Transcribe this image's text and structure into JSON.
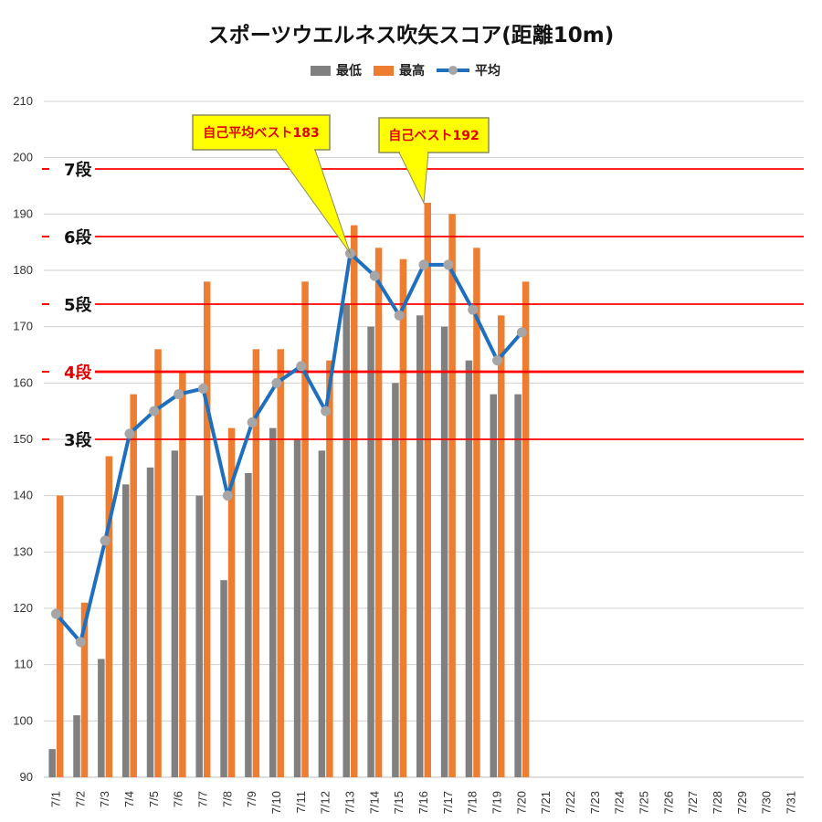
{
  "chart_data": {
    "type": "bar",
    "title": "スポーツウエルネス吹矢スコア(距離10m)",
    "categories": [
      "7/1",
      "7/2",
      "7/3",
      "7/4",
      "7/5",
      "7/6",
      "7/7",
      "7/8",
      "7/9",
      "7/10",
      "7/11",
      "7/12",
      "7/13",
      "7/14",
      "7/15",
      "7/16",
      "7/17",
      "7/18",
      "7/19",
      "7/20",
      "7/21",
      "7/22",
      "7/23",
      "7/24",
      "7/25",
      "7/26",
      "7/27",
      "7/28",
      "7/29",
      "7/30",
      "7/31"
    ],
    "series": [
      {
        "name": "最低",
        "kind": "bar",
        "color": "#808080",
        "values": [
          95,
          101,
          111,
          142,
          145,
          148,
          140,
          125,
          144,
          152,
          150,
          148,
          174,
          170,
          160,
          172,
          170,
          164,
          158,
          158,
          null,
          null,
          null,
          null,
          null,
          null,
          null,
          null,
          null,
          null,
          null
        ]
      },
      {
        "name": "最高",
        "kind": "bar",
        "color": "#ed7d31",
        "values": [
          140,
          121,
          147,
          158,
          166,
          162,
          178,
          152,
          166,
          166,
          178,
          164,
          188,
          184,
          182,
          192,
          190,
          184,
          172,
          178,
          null,
          null,
          null,
          null,
          null,
          null,
          null,
          null,
          null,
          null,
          null
        ]
      },
      {
        "name": "平均",
        "kind": "line",
        "color": "#1f6fbf",
        "marker_color": "#a6a6a6",
        "values": [
          119,
          114,
          132,
          151,
          155,
          158,
          159,
          140,
          153,
          160,
          163,
          155,
          183,
          179,
          172,
          181,
          181,
          173,
          164,
          169,
          null,
          null,
          null,
          null,
          null,
          null,
          null,
          null,
          null,
          null,
          null
        ]
      }
    ],
    "ylim": [
      90,
      210
    ],
    "yticks": [
      90,
      100,
      110,
      120,
      130,
      140,
      150,
      160,
      170,
      180,
      190,
      200,
      210
    ],
    "grid": true,
    "legend_position": "top-center",
    "reference_lines": [
      {
        "label": "7段",
        "value": 198,
        "label_color": "#111111"
      },
      {
        "label": "6段",
        "value": 186,
        "label_color": "#111111"
      },
      {
        "label": "5段",
        "value": 174,
        "label_color": "#111111"
      },
      {
        "label": "4段",
        "value": 162,
        "label_color": "#e00000"
      },
      {
        "label": "3段",
        "value": 150,
        "label_color": "#111111"
      }
    ],
    "annotations": [
      {
        "text": "自己平均ベスト183",
        "category": "7/13",
        "value": 183
      },
      {
        "text": "自己ベスト192",
        "category": "7/16",
        "value": 192
      }
    ]
  }
}
